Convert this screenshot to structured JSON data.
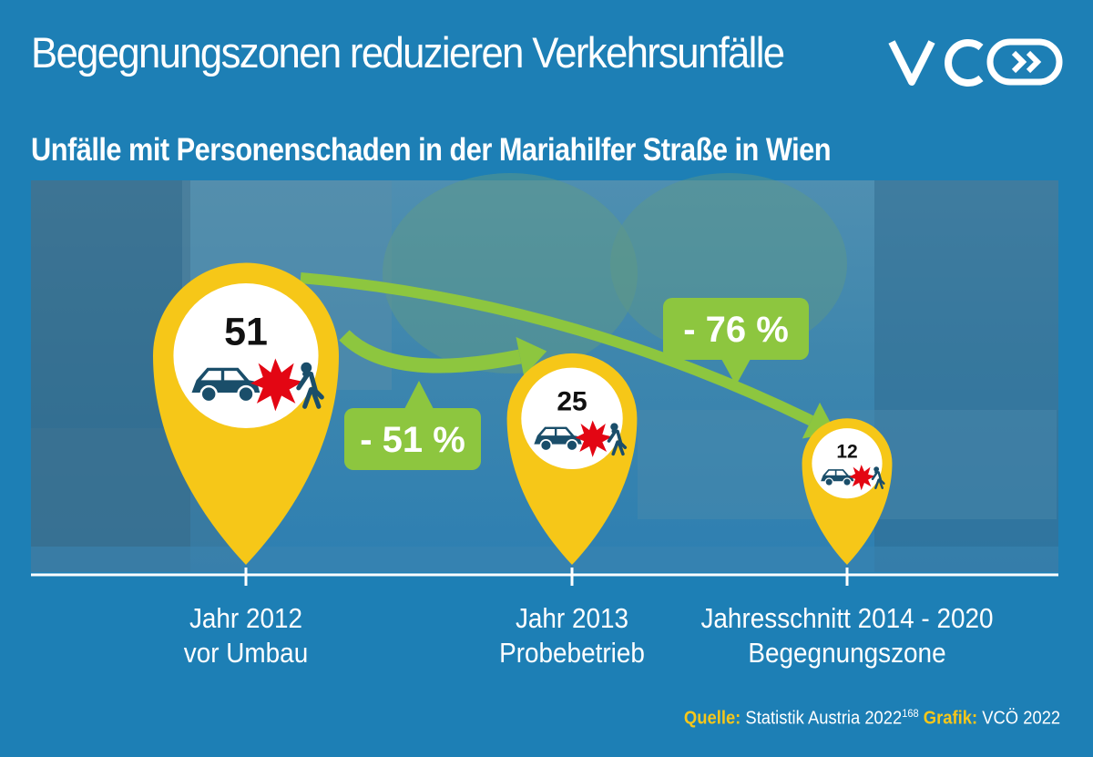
{
  "title": "Begegnungszonen reduzieren Verkehrsunfälle",
  "logo": "VCÖ",
  "colors": {
    "background": "#1d7fb5",
    "pin": "#f6c718",
    "arrow": "#8dc63f",
    "car": "#1a4e6a",
    "crash": "#e30613"
  },
  "chart_data": {
    "type": "bar",
    "title": "Unfälle mit Personenschaden in der Mariahilfer Straße in Wien",
    "categories": [
      [
        "Jahr 2012",
        "vor Umbau"
      ],
      [
        "Jahr 2013",
        "Probebetrieb"
      ],
      [
        "Jahresschnitt 2014 - 2020",
        "Begegnungszone"
      ]
    ],
    "values": [
      51,
      25,
      12
    ],
    "annotations": [
      {
        "from": 0,
        "to": 1,
        "text": "- 51 %"
      },
      {
        "from": 0,
        "to": 2,
        "text": "- 76 %"
      }
    ]
  },
  "source": {
    "source_label": "Quelle:",
    "source_text": "Statistik Austria 2022",
    "source_ref": "168",
    "graphic_label": "Grafik:",
    "graphic_text": "VCÖ 2022"
  }
}
